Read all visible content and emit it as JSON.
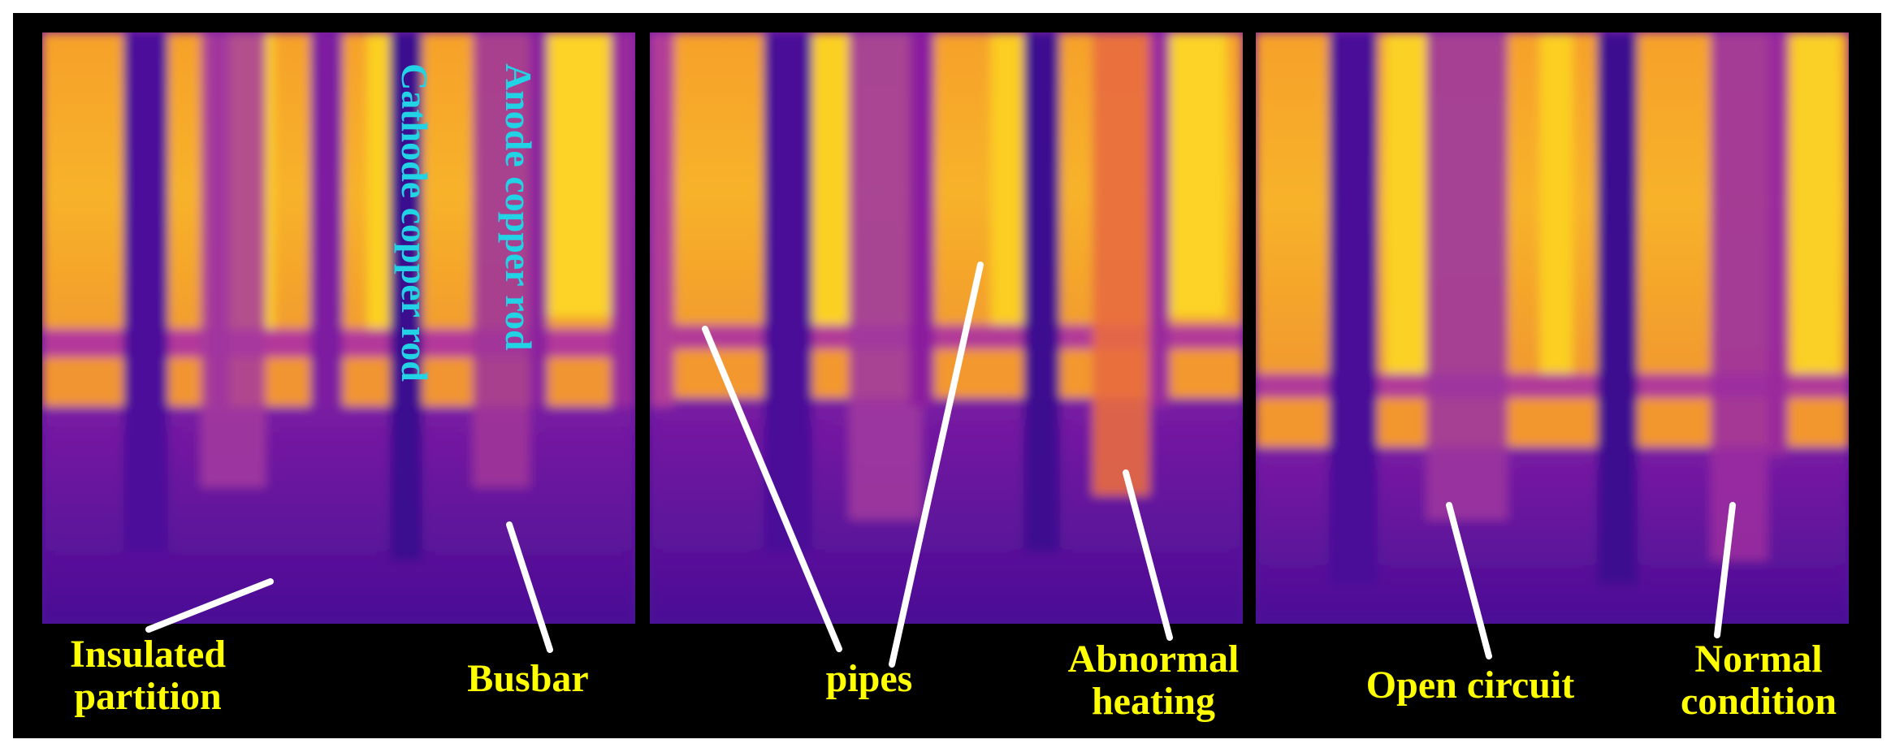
{
  "labels": {
    "cathode": "Cathode copper rod",
    "anode": "Anode copper rod"
  },
  "captions": {
    "insulated_line1": "Insulated",
    "insulated_line2": "partition",
    "busbar": "Busbar",
    "pipes": "pipes",
    "abnormal_line1": "Abnormal",
    "abnormal_line2": "heating",
    "open_circuit": "Open circuit",
    "normal_line1": "Normal",
    "normal_line2": "condition"
  },
  "colors": {
    "caption": "#ffff00",
    "rod_label": "#22d3e6",
    "pointer": "#ffffff",
    "hot": "#fcd024",
    "warm": "#f6a12a",
    "cold": "#4a0d95"
  }
}
